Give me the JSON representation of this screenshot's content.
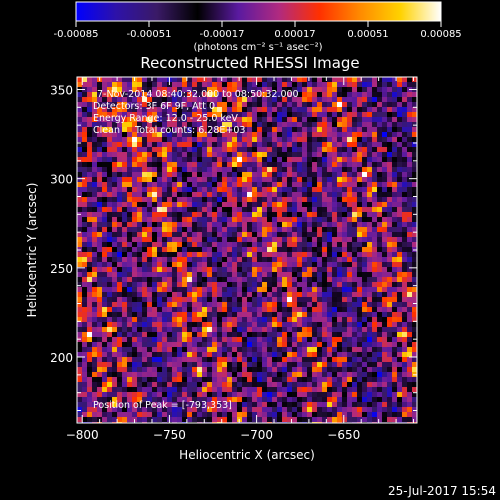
{
  "colorbar": {
    "tick_labels": [
      "-0.00085",
      "-0.00051",
      "-0.00017",
      "0.00017",
      "0.00051",
      "0.00085"
    ],
    "unit_label": "(photons cm⁻² s⁻¹ asec⁻²)",
    "colors": [
      "#0000ff",
      "#2e12a8",
      "#3a1a66",
      "#000000",
      "#5a1aa0",
      "#b02a80",
      "#ff3000",
      "#ff8a00",
      "#ffd200",
      "#ffffff"
    ]
  },
  "chart_data": {
    "type": "heatmap",
    "title": "Reconstructed RHESSI Image",
    "xlabel": "Heliocentric X (arcsec)",
    "ylabel": "Heliocentric Y (arcsec)",
    "xlim": [
      -803,
      -608
    ],
    "ylim": [
      163,
      357
    ],
    "x_ticks": [
      -800,
      -750,
      -700,
      -650
    ],
    "y_ticks": [
      200,
      250,
      300,
      350
    ],
    "x_tick_labels": [
      "−800",
      "−750",
      "−700",
      "−650"
    ],
    "y_tick_labels": [
      "200",
      "250",
      "300",
      "350"
    ],
    "value_range": [
      -0.00085,
      0.00085
    ],
    "peak": {
      "x": -793,
      "y": 353
    },
    "annotations": [
      "7-Nov-2014 08:40:32.000 to 08:50:32.000",
      "Detectors: 3F 6F 9F, Att 0",
      "Energy Range: 12.0 - 25.0 keV",
      "Clean     Total counts: 6.28E+03"
    ],
    "peak_label": "Position of Peak = [-793,353]"
  },
  "footer": {
    "timestamp": "25-Jul-2017 15:54"
  }
}
